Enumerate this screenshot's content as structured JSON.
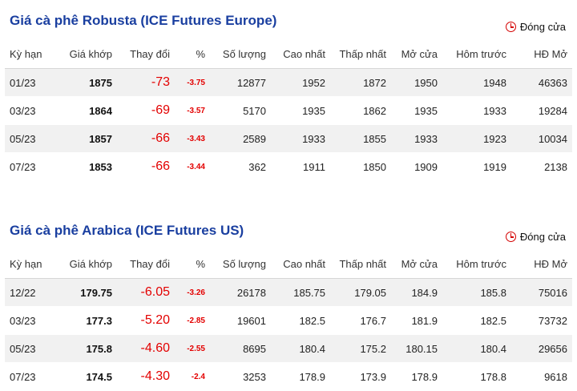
{
  "columns": [
    "Kỳ hạn",
    "Giá khớp",
    "Thay đổi",
    "%",
    "Số lượng",
    "Cao nhất",
    "Thấp nhất",
    "Mở cửa",
    "Hôm trước",
    "HĐ Mở"
  ],
  "status_label": "Đóng cửa",
  "colors": {
    "title": "#1a3fa0",
    "negative": "#e30000",
    "row_alt": "#f1f1f1"
  },
  "sections": [
    {
      "title": "Giá cà phê Robusta (ICE Futures Europe)",
      "rows": [
        [
          "01/23",
          "1875",
          "-73",
          "-3.75",
          "12877",
          "1952",
          "1872",
          "1950",
          "1948",
          "46363"
        ],
        [
          "03/23",
          "1864",
          "-69",
          "-3.57",
          "5170",
          "1935",
          "1862",
          "1935",
          "1933",
          "19284"
        ],
        [
          "05/23",
          "1857",
          "-66",
          "-3.43",
          "2589",
          "1933",
          "1855",
          "1933",
          "1923",
          "10034"
        ],
        [
          "07/23",
          "1853",
          "-66",
          "-3.44",
          "362",
          "1911",
          "1850",
          "1909",
          "1919",
          "2138"
        ]
      ]
    },
    {
      "title": "Giá cà phê Arabica (ICE Futures US)",
      "rows": [
        [
          "12/22",
          "179.75",
          "-6.05",
          "-3.26",
          "26178",
          "185.75",
          "179.05",
          "184.9",
          "185.8",
          "75016"
        ],
        [
          "03/23",
          "177.3",
          "-5.20",
          "-2.85",
          "19601",
          "182.5",
          "176.7",
          "181.9",
          "182.5",
          "73732"
        ],
        [
          "05/23",
          "175.8",
          "-4.60",
          "-2.55",
          "8695",
          "180.4",
          "175.2",
          "180.15",
          "180.4",
          "29656"
        ],
        [
          "07/23",
          "174.5",
          "-4.30",
          "-2.4",
          "3253",
          "178.9",
          "173.9",
          "178.9",
          "178.8",
          "9618"
        ]
      ]
    }
  ]
}
